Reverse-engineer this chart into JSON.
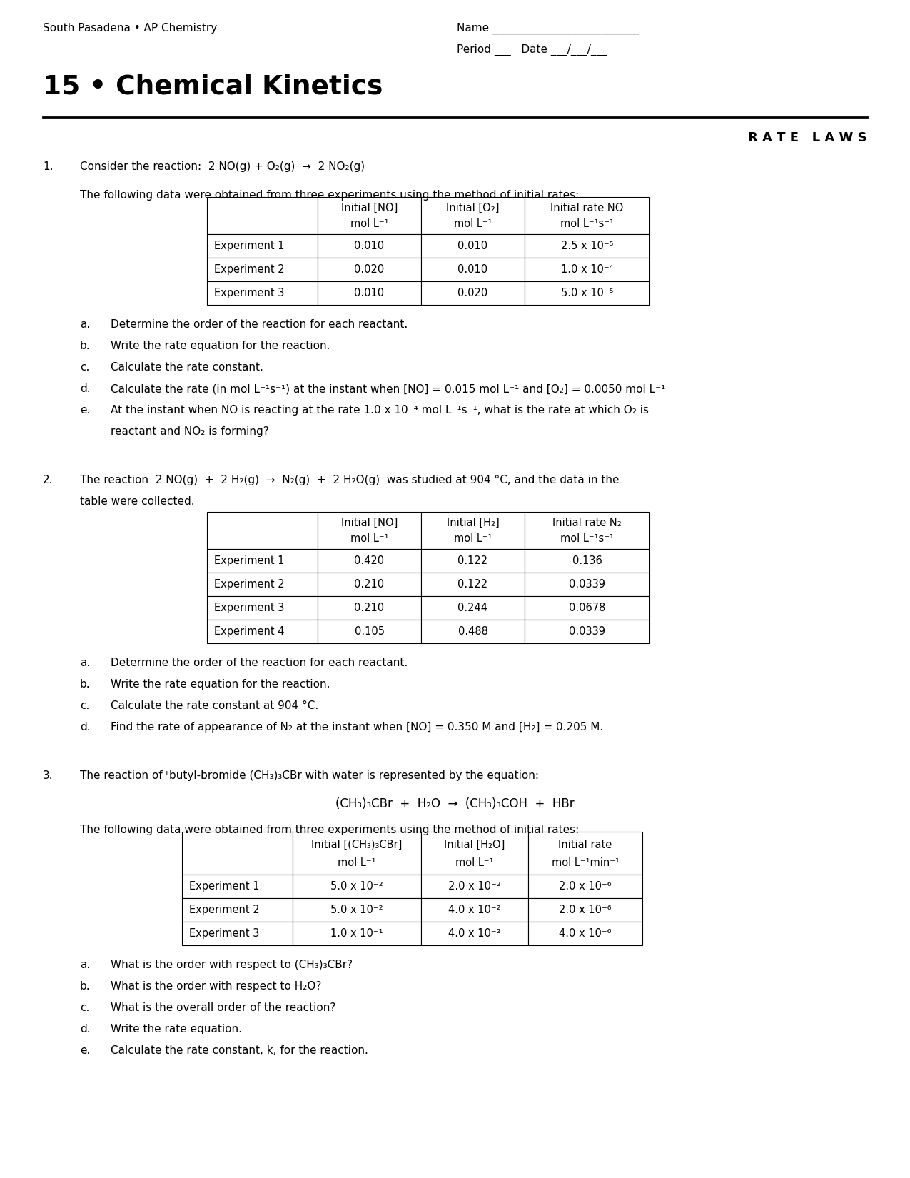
{
  "title": "15 • Chemical Kinetics",
  "subtitle_left": "South Pasadena • AP Chemistry",
  "name_line": "Name ___________________________",
  "period_line": "Period ___   Date ___/___/___",
  "section_title": "R A T E   L A W S",
  "bg_color": "#ffffff",
  "q1_label": "1.",
  "q1_intro": "Consider the reaction:  2 NO(g) + O₂(g)  →  2 NO₂(g)",
  "q1_table_intro": "The following data were obtained from three experiments using the method of initial rates:",
  "q1_headers_row1": [
    "",
    "Initial [NO]",
    "Initial [O₂]",
    "Initial rate NO"
  ],
  "q1_headers_row2": [
    "",
    "mol L⁻¹",
    "mol L⁻¹",
    "mol L⁻¹s⁻¹"
  ],
  "q1_rows": [
    [
      "Experiment 1",
      "0.010",
      "0.010",
      "2.5 x 10⁻⁵"
    ],
    [
      "Experiment 2",
      "0.020",
      "0.010",
      "1.0 x 10⁻⁴"
    ],
    [
      "Experiment 3",
      "0.010",
      "0.020",
      "5.0 x 10⁻⁵"
    ]
  ],
  "q1_parts_labels": [
    "a.",
    "b.",
    "c.",
    "d.",
    "e."
  ],
  "q1_parts_text": [
    "Determine the order of the reaction for each reactant.",
    "Write the rate equation for the reaction.",
    "Calculate the rate constant.",
    "Calculate the rate (in mol L⁻¹s⁻¹) at the instant when [NO] = 0.015 mol L⁻¹ and [O₂] = 0.0050 mol L⁻¹",
    "At the instant when NO is reacting at the rate 1.0 x 10⁻⁴ mol L⁻¹s⁻¹, what is the rate at which O₂ is"
  ],
  "q1_part_e_line2": "reactant and NO₂ is forming?",
  "q2_label": "2.",
  "q2_intro_line1": "The reaction  2 NO(g)  +  2 H₂(g)  →  N₂(g)  +  2 H₂O(g)  was studied at 904 °C, and the data in the",
  "q2_intro_line2": "table were collected.",
  "q2_headers_row1": [
    "",
    "Initial [NO]",
    "Initial [H₂]",
    "Initial rate N₂"
  ],
  "q2_headers_row2": [
    "",
    "mol L⁻¹",
    "mol L⁻¹",
    "mol L⁻¹s⁻¹"
  ],
  "q2_rows": [
    [
      "Experiment 1",
      "0.420",
      "0.122",
      "0.136"
    ],
    [
      "Experiment 2",
      "0.210",
      "0.122",
      "0.0339"
    ],
    [
      "Experiment 3",
      "0.210",
      "0.244",
      "0.0678"
    ],
    [
      "Experiment 4",
      "0.105",
      "0.488",
      "0.0339"
    ]
  ],
  "q2_parts_labels": [
    "a.",
    "b.",
    "c.",
    "d."
  ],
  "q2_parts_text": [
    "Determine the order of the reaction for each reactant.",
    "Write the rate equation for the reaction.",
    "Calculate the rate constant at 904 °C.",
    "Find the rate of appearance of N₂ at the instant when [NO] = 0.350 M and [H₂] = 0.205 M."
  ],
  "q3_label": "3.",
  "q3_intro": "The reaction of ᵗbutyl-bromide (CH₃)₃CBr with water is represented by the equation:",
  "q3_equation": "(CH₃)₃CBr  +  H₂O  →  (CH₃)₃COH  +  HBr",
  "q3_table_intro": "The following data were obtained from three experiments using the method of initial rates:",
  "q3_headers_row1": [
    "",
    "Initial [(CH₃)₃CBr]",
    "Initial [H₂O]",
    "Initial rate"
  ],
  "q3_headers_row2": [
    "",
    "mol L⁻¹",
    "mol L⁻¹",
    "mol L⁻¹min⁻¹"
  ],
  "q3_rows": [
    [
      "Experiment 1",
      "5.0 x 10⁻²",
      "2.0 x 10⁻²",
      "2.0 x 10⁻⁶"
    ],
    [
      "Experiment 2",
      "5.0 x 10⁻²",
      "4.0 x 10⁻²",
      "2.0 x 10⁻⁶"
    ],
    [
      "Experiment 3",
      "1.0 x 10⁻¹",
      "4.0 x 10⁻²",
      "4.0 x 10⁻⁶"
    ]
  ],
  "q3_parts_labels": [
    "a.",
    "b.",
    "c.",
    "d.",
    "e."
  ],
  "q3_parts_text": [
    "What is the order with respect to (CH₃)₃CBr?",
    "What is the order with respect to H₂O?",
    "What is the overall order of the reaction?",
    "Write the rate equation.",
    "Calculate the rate constant, k, for the reaction."
  ]
}
